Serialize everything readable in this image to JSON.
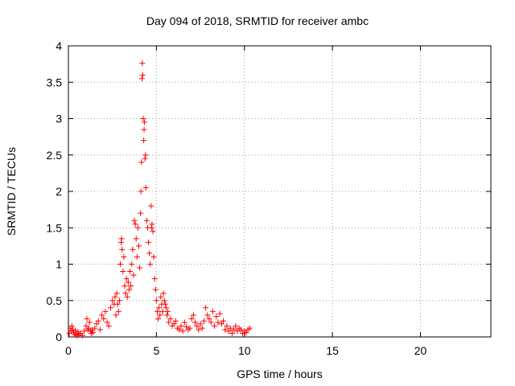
{
  "chart_data": {
    "type": "scatter",
    "title": "Day 094 of 2018, SRMTID for receiver ambc",
    "xlabel": "GPS time / hours",
    "ylabel": "SRMTID / TECUs",
    "xlim": [
      0,
      24
    ],
    "ylim": [
      0,
      4
    ],
    "xticks": [
      "0",
      "5",
      "10",
      "15",
      "20"
    ],
    "yticks": [
      "0",
      "0.5",
      "1",
      "1.5",
      "2",
      "2.5",
      "3",
      "3.5",
      "4"
    ],
    "grid": true,
    "marker": "+",
    "color": "#ff0000",
    "series": [
      {
        "x": [
          0.05,
          0.1,
          0.15,
          0.2,
          0.25,
          0.3,
          0.35,
          0.4,
          0.45,
          0.5,
          0.55,
          0.6,
          0.7,
          0.8,
          0.9,
          1.0,
          1.05,
          1.1,
          1.15,
          1.2,
          1.25,
          1.3,
          1.35,
          1.4,
          1.5,
          1.6,
          1.7,
          1.8,
          1.9,
          2.0,
          2.1,
          2.2,
          2.3,
          2.4,
          2.5,
          2.6,
          2.65,
          2.7,
          2.75,
          2.8,
          2.85,
          2.9,
          2.95,
          3.0,
          3.02,
          3.05,
          3.1,
          3.15,
          3.2,
          3.25,
          3.3,
          3.35,
          3.4,
          3.45,
          3.5,
          3.55,
          3.6,
          3.65,
          3.7,
          3.75,
          3.8,
          3.85,
          3.9,
          3.95,
          4.0,
          4.05,
          4.1,
          4.12,
          4.15,
          4.18,
          4.2,
          4.22,
          4.25,
          4.28,
          4.3,
          4.32,
          4.35,
          4.38,
          4.4,
          4.45,
          4.5,
          4.55,
          4.6,
          4.65,
          4.7,
          4.72,
          4.75,
          4.8,
          4.85,
          4.9,
          4.95,
          5.0,
          5.05,
          5.1,
          5.15,
          5.2,
          5.25,
          5.3,
          5.35,
          5.4,
          5.45,
          5.5,
          5.55,
          5.6,
          5.65,
          5.7,
          5.8,
          5.9,
          6.0,
          6.1,
          6.2,
          6.3,
          6.4,
          6.5,
          6.6,
          6.7,
          6.8,
          6.9,
          7.0,
          7.1,
          7.2,
          7.3,
          7.4,
          7.5,
          7.6,
          7.7,
          7.8,
          7.9,
          8.0,
          8.1,
          8.2,
          8.3,
          8.4,
          8.5,
          8.6,
          8.7,
          8.8,
          8.9,
          9.0,
          9.1,
          9.2,
          9.3,
          9.4,
          9.5,
          9.6,
          9.7,
          9.8,
          9.9,
          10.0,
          10.1,
          10.2,
          10.3
        ],
        "y": [
          0.05,
          0.12,
          0.08,
          0.15,
          0.1,
          0.06,
          0.03,
          0.09,
          0.04,
          0.02,
          0.07,
          0.03,
          0.05,
          0.02,
          0.08,
          0.15,
          0.25,
          0.1,
          0.12,
          0.2,
          0.08,
          0.05,
          0.1,
          0.06,
          0.12,
          0.18,
          0.22,
          0.1,
          0.3,
          0.25,
          0.35,
          0.2,
          0.15,
          0.4,
          0.5,
          0.45,
          0.55,
          0.3,
          0.6,
          0.45,
          0.35,
          0.5,
          1.0,
          1.3,
          1.35,
          1.2,
          0.9,
          1.1,
          0.7,
          0.6,
          0.8,
          0.55,
          0.75,
          0.65,
          0.9,
          0.7,
          1.0,
          1.2,
          0.85,
          1.6,
          1.55,
          1.35,
          1.1,
          1.5,
          1.25,
          0.95,
          1.7,
          2.0,
          2.4,
          3.55,
          3.76,
          3.6,
          3.0,
          2.7,
          2.85,
          2.95,
          2.45,
          2.5,
          2.05,
          1.6,
          1.5,
          1.3,
          1.15,
          1.0,
          1.8,
          1.5,
          1.55,
          1.45,
          1.1,
          0.8,
          0.65,
          0.5,
          0.35,
          0.25,
          0.4,
          0.3,
          0.55,
          0.45,
          0.35,
          0.6,
          0.5,
          0.45,
          0.4,
          0.3,
          0.35,
          0.2,
          0.25,
          0.15,
          0.18,
          0.22,
          0.12,
          0.1,
          0.15,
          0.08,
          0.2,
          0.14,
          0.1,
          0.12,
          0.25,
          0.3,
          0.2,
          0.15,
          0.1,
          0.18,
          0.12,
          0.22,
          0.4,
          0.3,
          0.25,
          0.2,
          0.35,
          0.15,
          0.28,
          0.2,
          0.32,
          0.18,
          0.22,
          0.1,
          0.15,
          0.08,
          0.12,
          0.05,
          0.1,
          0.15,
          0.08,
          0.12,
          0.1,
          0.05,
          0.08,
          0.06,
          0.1,
          0.12
        ]
      }
    ]
  }
}
